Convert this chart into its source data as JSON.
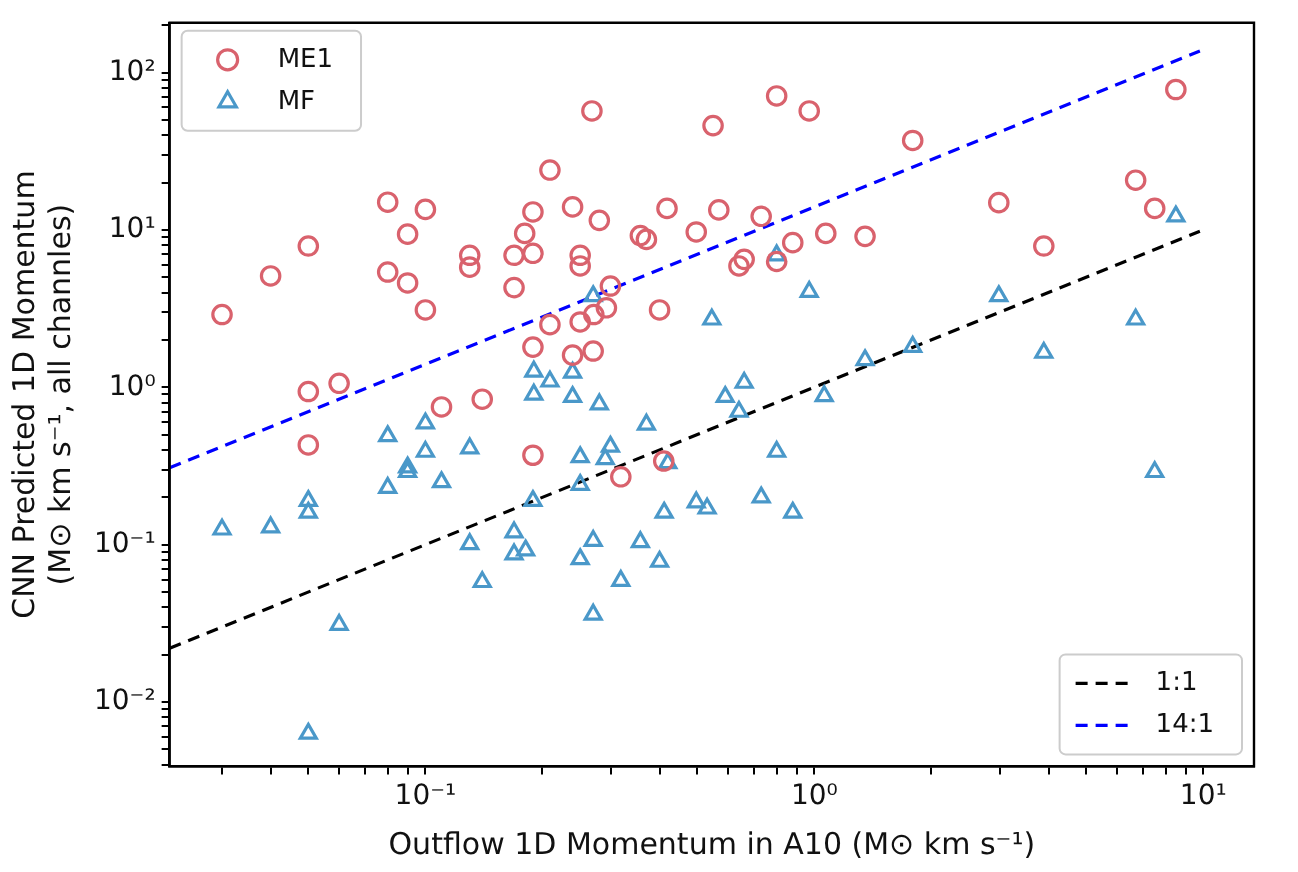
{
  "chart_data": {
    "type": "scatter",
    "xlabel": "Outflow 1D Momentum in A10 (M⊙ km s⁻¹)",
    "ylabel": "CNN Predicted 1D Momentum\n(M⊙ km s⁻¹, all channles)",
    "log": "xy",
    "grid": false,
    "legend": "top left",
    "xlim": [
      0.022,
      13.5
    ],
    "ylim": [
      0.0039,
      207
    ],
    "xticks": [
      {
        "value": 0.03,
        "label": null
      },
      {
        "value": 0.04,
        "label": null
      },
      {
        "value": 0.05,
        "label": null
      },
      {
        "value": 0.06,
        "label": null
      },
      {
        "value": 0.07,
        "label": null
      },
      {
        "value": 0.08,
        "label": null
      },
      {
        "value": 0.09,
        "label": null
      },
      {
        "value": 0.1,
        "label": "10⁻¹"
      },
      {
        "value": 0.2,
        "label": null
      },
      {
        "value": 0.3,
        "label": null
      },
      {
        "value": 0.4,
        "label": null
      },
      {
        "value": 0.5,
        "label": null
      },
      {
        "value": 0.6,
        "label": null
      },
      {
        "value": 0.7,
        "label": null
      },
      {
        "value": 0.8,
        "label": null
      },
      {
        "value": 0.9,
        "label": null
      },
      {
        "value": 1,
        "label": "10⁰"
      },
      {
        "value": 2,
        "label": null
      },
      {
        "value": 3,
        "label": null
      },
      {
        "value": 4,
        "label": null
      },
      {
        "value": 5,
        "label": null
      },
      {
        "value": 6,
        "label": null
      },
      {
        "value": 7,
        "label": null
      },
      {
        "value": 8,
        "label": null
      },
      {
        "value": 9,
        "label": null
      },
      {
        "value": 10,
        "label": "10¹"
      }
    ],
    "yticks": [
      {
        "value": 0.004,
        "label": null
      },
      {
        "value": 0.005,
        "label": null
      },
      {
        "value": 0.006,
        "label": null
      },
      {
        "value": 0.007,
        "label": null
      },
      {
        "value": 0.008,
        "label": null
      },
      {
        "value": 0.009,
        "label": null
      },
      {
        "value": 0.01,
        "label": "10⁻²"
      },
      {
        "value": 0.02,
        "label": null
      },
      {
        "value": 0.03,
        "label": null
      },
      {
        "value": 0.04,
        "label": null
      },
      {
        "value": 0.05,
        "label": null
      },
      {
        "value": 0.06,
        "label": null
      },
      {
        "value": 0.07,
        "label": null
      },
      {
        "value": 0.08,
        "label": null
      },
      {
        "value": 0.09,
        "label": null
      },
      {
        "value": 0.1,
        "label": "10⁻¹"
      },
      {
        "value": 0.2,
        "label": null
      },
      {
        "value": 0.3,
        "label": null
      },
      {
        "value": 0.4,
        "label": null
      },
      {
        "value": 0.5,
        "label": null
      },
      {
        "value": 0.6,
        "label": null
      },
      {
        "value": 0.7,
        "label": null
      },
      {
        "value": 0.8,
        "label": null
      },
      {
        "value": 0.9,
        "label": null
      },
      {
        "value": 1,
        "label": "10⁰"
      },
      {
        "value": 2,
        "label": null
      },
      {
        "value": 3,
        "label": null
      },
      {
        "value": 4,
        "label": null
      },
      {
        "value": 5,
        "label": null
      },
      {
        "value": 6,
        "label": null
      },
      {
        "value": 7,
        "label": null
      },
      {
        "value": 8,
        "label": null
      },
      {
        "value": 9,
        "label": null
      },
      {
        "value": 10,
        "label": "10¹"
      },
      {
        "value": 20,
        "label": null
      },
      {
        "value": 30,
        "label": null
      },
      {
        "value": 40,
        "label": null
      },
      {
        "value": 50,
        "label": null
      },
      {
        "value": 60,
        "label": null
      },
      {
        "value": 70,
        "label": null
      },
      {
        "value": 80,
        "label": null
      },
      {
        "value": 90,
        "label": null
      },
      {
        "value": 100,
        "label": "10²"
      },
      {
        "value": 200,
        "label": null
      }
    ],
    "series": [
      {
        "name": "ME1",
        "type": "scatter",
        "color": "#d9626d",
        "marker": "circle",
        "x": [
          0.03,
          0.04,
          0.05,
          0.05,
          0.06,
          0.08,
          0.08,
          0.09,
          0.09,
          0.1,
          0.1,
          0.11,
          0.13,
          0.13,
          0.14,
          0.169,
          0.169,
          0.18,
          0.189,
          0.189,
          0.189,
          0.209,
          0.209,
          0.239,
          0.25,
          0.25,
          0.25,
          0.239,
          0.268,
          0.27,
          0.271,
          0.28,
          0.292,
          0.299,
          0.357,
          0.37,
          0.4,
          0.418,
          0.497,
          0.549,
          0.568,
          0.05,
          0.189,
          0.318,
          0.41,
          0.8,
          0.97,
          1.79,
          0.73,
          0.66,
          0.64,
          0.8,
          0.88,
          1.07,
          1.35,
          2.98,
          3.89,
          6.7,
          7.5,
          8.5
        ],
        "values": [
          2.9,
          5.1,
          7.9,
          0.94,
          1.06,
          15,
          5.4,
          9.4,
          4.6,
          13.5,
          3.1,
          0.75,
          6.9,
          5.8,
          0.84,
          6.9,
          4.3,
          9.5,
          13,
          7.1,
          1.8,
          24,
          2.5,
          14,
          6.9,
          5.9,
          2.6,
          1.6,
          57,
          1.7,
          2.9,
          11.5,
          3.2,
          4.4,
          9.2,
          8.7,
          3.1,
          13.7,
          9.7,
          46,
          13.4,
          0.43,
          0.37,
          0.27,
          0.34,
          71,
          57,
          37,
          12.2,
          6.5,
          5.9,
          6.3,
          8.3,
          9.5,
          9.1,
          14.9,
          7.9,
          20.7,
          13.7,
          78
        ]
      },
      {
        "name": "MF",
        "type": "scatter",
        "color": "#4a98c9",
        "marker": "triangle",
        "x": [
          0.27,
          0.19,
          0.209,
          0.239,
          0.19,
          0.239,
          0.28,
          0.545,
          0.08,
          0.1,
          0.1,
          0.09,
          0.09,
          0.13,
          0.08,
          0.11,
          0.05,
          0.05,
          0.03,
          0.04,
          0.06,
          0.05,
          0.13,
          0.14,
          0.169,
          0.169,
          0.181,
          0.189,
          0.25,
          0.25,
          0.299,
          0.29,
          0.27,
          0.25,
          0.27,
          0.318,
          0.357,
          0.37,
          0.4,
          0.411,
          0.42,
          0.497,
          0.8,
          0.97,
          2.98,
          6.7,
          8.5,
          3.89,
          1.79,
          1.35,
          1.06,
          0.66,
          0.59,
          0.64,
          0.8,
          0.73,
          0.88,
          0.53,
          7.5
        ],
        "values": [
          3.8,
          1.26,
          1.09,
          1.24,
          0.9,
          0.87,
          0.78,
          2.7,
          0.49,
          0.59,
          0.39,
          0.31,
          0.29,
          0.41,
          0.23,
          0.25,
          0.19,
          0.16,
          0.125,
          0.129,
          0.031,
          0.0063,
          0.101,
          0.058,
          0.12,
          0.087,
          0.092,
          0.19,
          0.36,
          0.24,
          0.42,
          0.35,
          0.106,
          0.081,
          0.036,
          0.059,
          0.104,
          0.58,
          0.078,
          0.16,
          0.33,
          0.186,
          6.9,
          4.05,
          3.8,
          2.7,
          12.2,
          1.66,
          1.81,
          1.49,
          0.88,
          1.07,
          0.87,
          0.7,
          0.39,
          0.2,
          0.16,
          0.17,
          0.29
        ]
      },
      {
        "name": "1:1",
        "type": "line",
        "color": "#000000",
        "marker": "none",
        "line_style": "dashed",
        "x": [
          0.022,
          9.8
        ],
        "values": [
          0.022,
          9.8
        ]
      },
      {
        "name": "14:1",
        "type": "line",
        "color": "#0000ff",
        "marker": "none",
        "line_style": "dashed",
        "x": [
          0.022,
          9.8
        ],
        "values": [
          0.308,
          137.2
        ]
      }
    ]
  }
}
